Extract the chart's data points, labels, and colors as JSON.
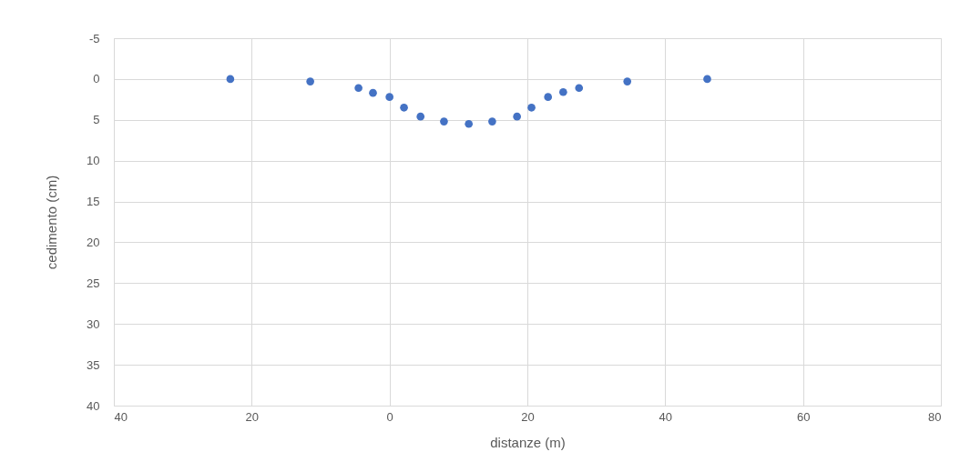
{
  "chart_data": {
    "type": "scatter",
    "xlabel": "distanze (m)",
    "ylabel": "cedimento (cm)",
    "x": [
      -23.1,
      -11.5,
      -4.5,
      -2.4,
      0,
      2.1,
      4.5,
      7.9,
      11.5,
      14.9,
      18.5,
      20.6,
      23.0,
      25.2,
      27.5,
      34.5,
      46.1
    ],
    "series": [
      {
        "color": "#4472c4",
        "values": [
          0,
          0.3,
          1.1,
          1.7,
          2.2,
          3.5,
          4.6,
          5.2,
          5.5,
          5.2,
          4.6,
          3.5,
          2.2,
          1.6,
          1.1,
          0.3,
          0
        ]
      }
    ],
    "xlim": [
      -40,
      80
    ],
    "xticks": [
      {
        "value": -40,
        "label": "40"
      },
      {
        "value": -20,
        "label": "20"
      },
      0,
      20,
      40,
      60,
      80
    ],
    "ylim": [
      40,
      -5
    ],
    "yticks": [
      -5,
      0,
      5,
      10,
      15,
      20,
      25,
      30,
      35,
      40
    ],
    "grid": true,
    "marker": "circle"
  }
}
